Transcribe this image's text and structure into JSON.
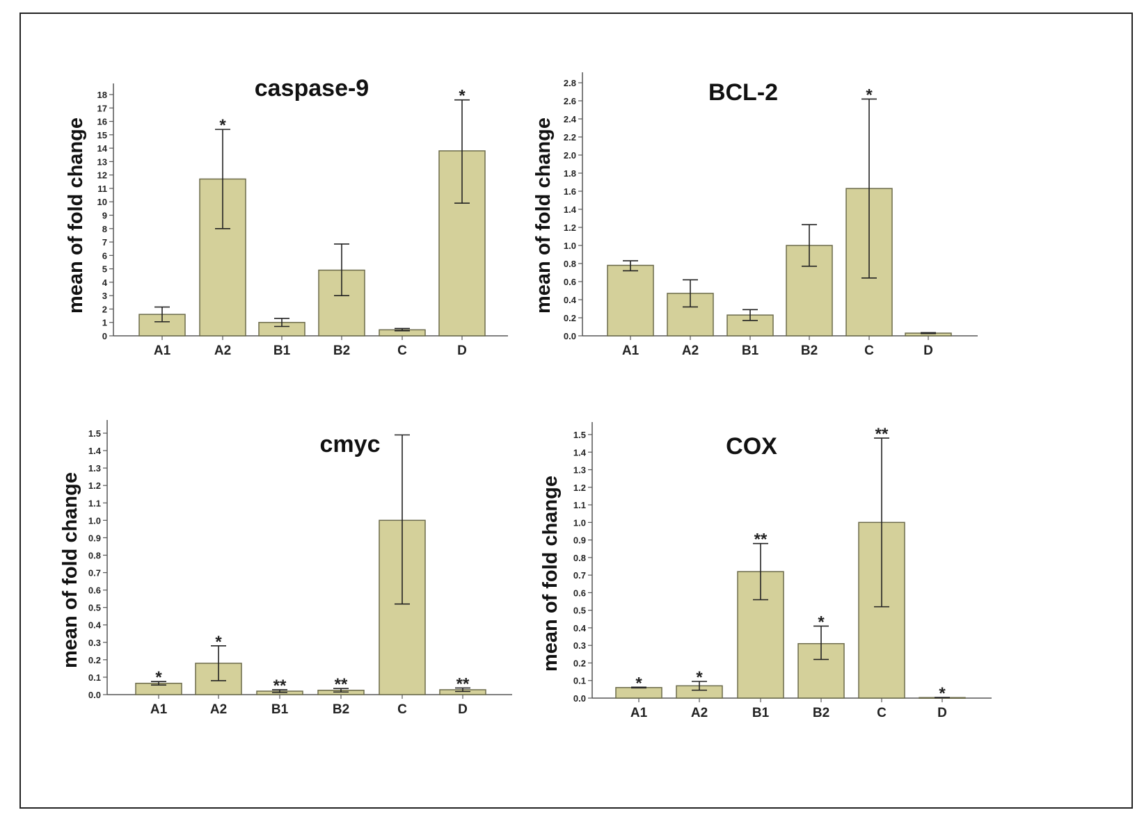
{
  "figure": {
    "bar_color": "#d4d09a",
    "bar_stroke": "#6b6a4a",
    "error_color": "#222222"
  },
  "chart_data": [
    {
      "type": "bar",
      "title": "caspase-9",
      "ylabel": "mean of fold change",
      "xlabel": "",
      "categories": [
        "A1",
        "A2",
        "B1",
        "B2",
        "C",
        "D"
      ],
      "values": [
        1.6,
        11.7,
        1.0,
        4.9,
        0.45,
        13.8
      ],
      "error_low": [
        1.05,
        8.0,
        0.7,
        3.0,
        0.38,
        9.9
      ],
      "error_high": [
        2.15,
        15.4,
        1.3,
        6.85,
        0.55,
        17.6
      ],
      "significance": [
        "",
        "*",
        "",
        "",
        "",
        "*"
      ],
      "ylim": [
        0,
        18
      ],
      "yticks": [
        "0",
        "1",
        "2",
        "3",
        "4",
        "5",
        "6",
        "7",
        "8",
        "9",
        "10",
        "11",
        "12",
        "13",
        "14",
        "15",
        "16",
        "17",
        "18"
      ]
    },
    {
      "type": "bar",
      "title": "BCL-2",
      "ylabel": "mean of fold change",
      "xlabel": "",
      "categories": [
        "A1",
        "A2",
        "B1",
        "B2",
        "C",
        "D"
      ],
      "values": [
        0.78,
        0.47,
        0.23,
        1.0,
        1.63,
        0.03
      ],
      "error_low": [
        0.72,
        0.32,
        0.17,
        0.77,
        0.64,
        0.025
      ],
      "error_high": [
        0.83,
        0.62,
        0.29,
        1.23,
        2.62,
        0.035
      ],
      "significance": [
        "",
        "",
        "",
        "",
        "*",
        ""
      ],
      "ylim": [
        0,
        2.8
      ],
      "yticks": [
        "0.0",
        "0.2",
        "0.4",
        "0.6",
        "0.8",
        "1.0",
        "1.2",
        "1.4",
        "1.6",
        "1.8",
        "2.0",
        "2.2",
        "2.4",
        "2.6",
        "2.8"
      ]
    },
    {
      "type": "bar",
      "title": "cmyc",
      "ylabel": "mean of fold change",
      "xlabel": "",
      "categories": [
        "A1",
        "A2",
        "B1",
        "B2",
        "C",
        "D"
      ],
      "values": [
        0.065,
        0.18,
        0.02,
        0.025,
        1.0,
        0.028
      ],
      "error_low": [
        0.055,
        0.08,
        0.012,
        0.015,
        0.52,
        0.018
      ],
      "error_high": [
        0.075,
        0.28,
        0.028,
        0.035,
        1.49,
        0.038
      ],
      "significance": [
        "*",
        "*",
        "**",
        "**",
        "",
        "**"
      ],
      "ylim": [
        0,
        1.5
      ],
      "yticks": [
        "0.0",
        "0.1",
        "0.2",
        "0.3",
        "0.4",
        "0.5",
        "0.6",
        "0.7",
        "0.8",
        "0.9",
        "1.0",
        "1.1",
        "1.2",
        "1.3",
        "1.4",
        "1.5"
      ]
    },
    {
      "type": "bar",
      "title": "COX",
      "ylabel": "mean of fold change",
      "xlabel": "",
      "categories": [
        "A1",
        "A2",
        "B1",
        "B2",
        "C",
        "D"
      ],
      "values": [
        0.06,
        0.07,
        0.72,
        0.31,
        1.0,
        0.003
      ],
      "error_low": [
        0.058,
        0.045,
        0.56,
        0.22,
        0.52,
        0.002
      ],
      "error_high": [
        0.062,
        0.095,
        0.88,
        0.41,
        1.48,
        0.004
      ],
      "significance": [
        "*",
        "*",
        "**",
        "*",
        "**",
        "*"
      ],
      "ylim": [
        0,
        1.5
      ],
      "yticks": [
        "0.0",
        "0.1",
        "0.2",
        "0.3",
        "0.4",
        "0.5",
        "0.6",
        "0.7",
        "0.8",
        "0.9",
        "1.0",
        "1.1",
        "1.2",
        "1.3",
        "1.4",
        "1.5"
      ]
    }
  ]
}
